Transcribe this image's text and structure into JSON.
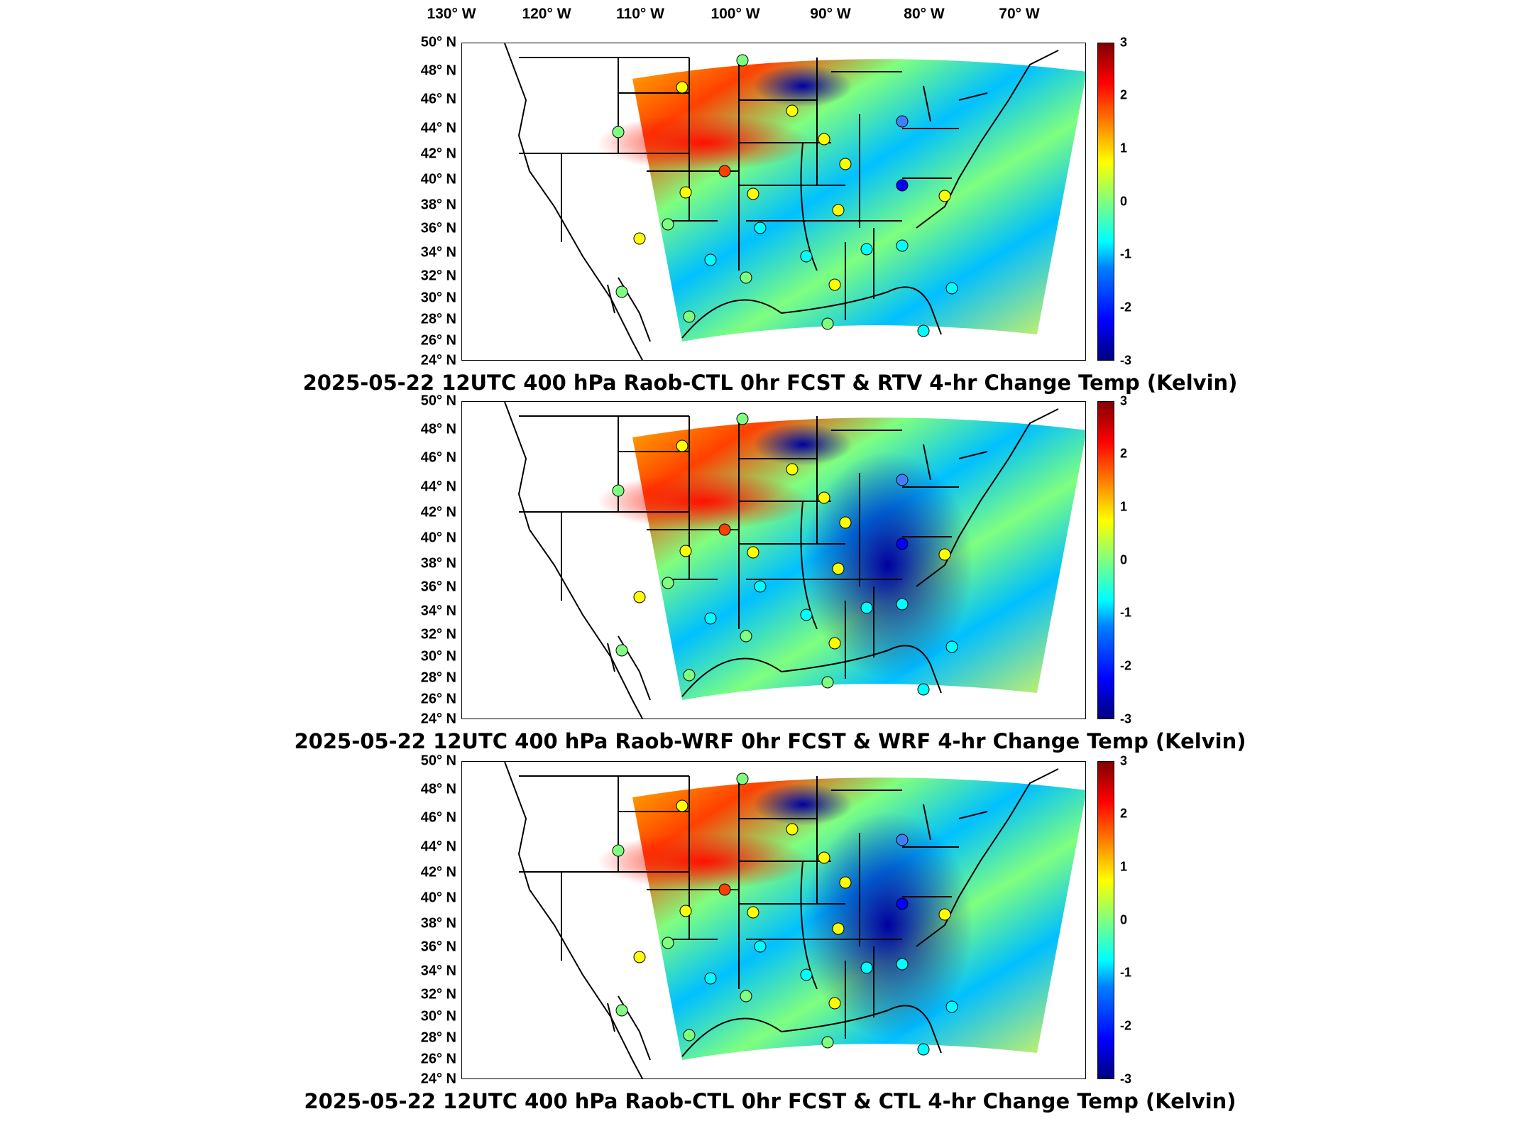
{
  "lon_labels": [
    "130° W",
    "120° W",
    "110° W",
    "100° W",
    "90° W",
    "80° W",
    "70° W"
  ],
  "lat_labels": [
    "50° N",
    "48° N",
    "46° N",
    "44° N",
    "42° N",
    "40° N",
    "38° N",
    "36° N",
    "34° N",
    "32° N",
    "30° N",
    "28° N",
    "26° N",
    "24° N"
  ],
  "colorbar": {
    "ticks": [
      "3",
      "2",
      "1",
      "0",
      "-1",
      "-2",
      "-3"
    ],
    "min": -3,
    "max": 3,
    "colormap": "jet"
  },
  "panels": [
    {
      "title": "2025-05-22 12UTC 400 hPa Raob-CTL 0hr FCST & RTV 4-hr Change Temp (Kelvin)"
    },
    {
      "title": "2025-05-22 12UTC 400 hPa Raob-WRF 0hr FCST & WRF 4-hr Change Temp (Kelvin)"
    },
    {
      "title": "2025-05-22 12UTC 400 hPa Raob-CTL 0hr FCST & CTL 4-hr Change Temp (Kelvin)"
    }
  ],
  "colors": {
    "background": "#ffffff",
    "coast": "#000000",
    "marker_edge": "#000000"
  }
}
